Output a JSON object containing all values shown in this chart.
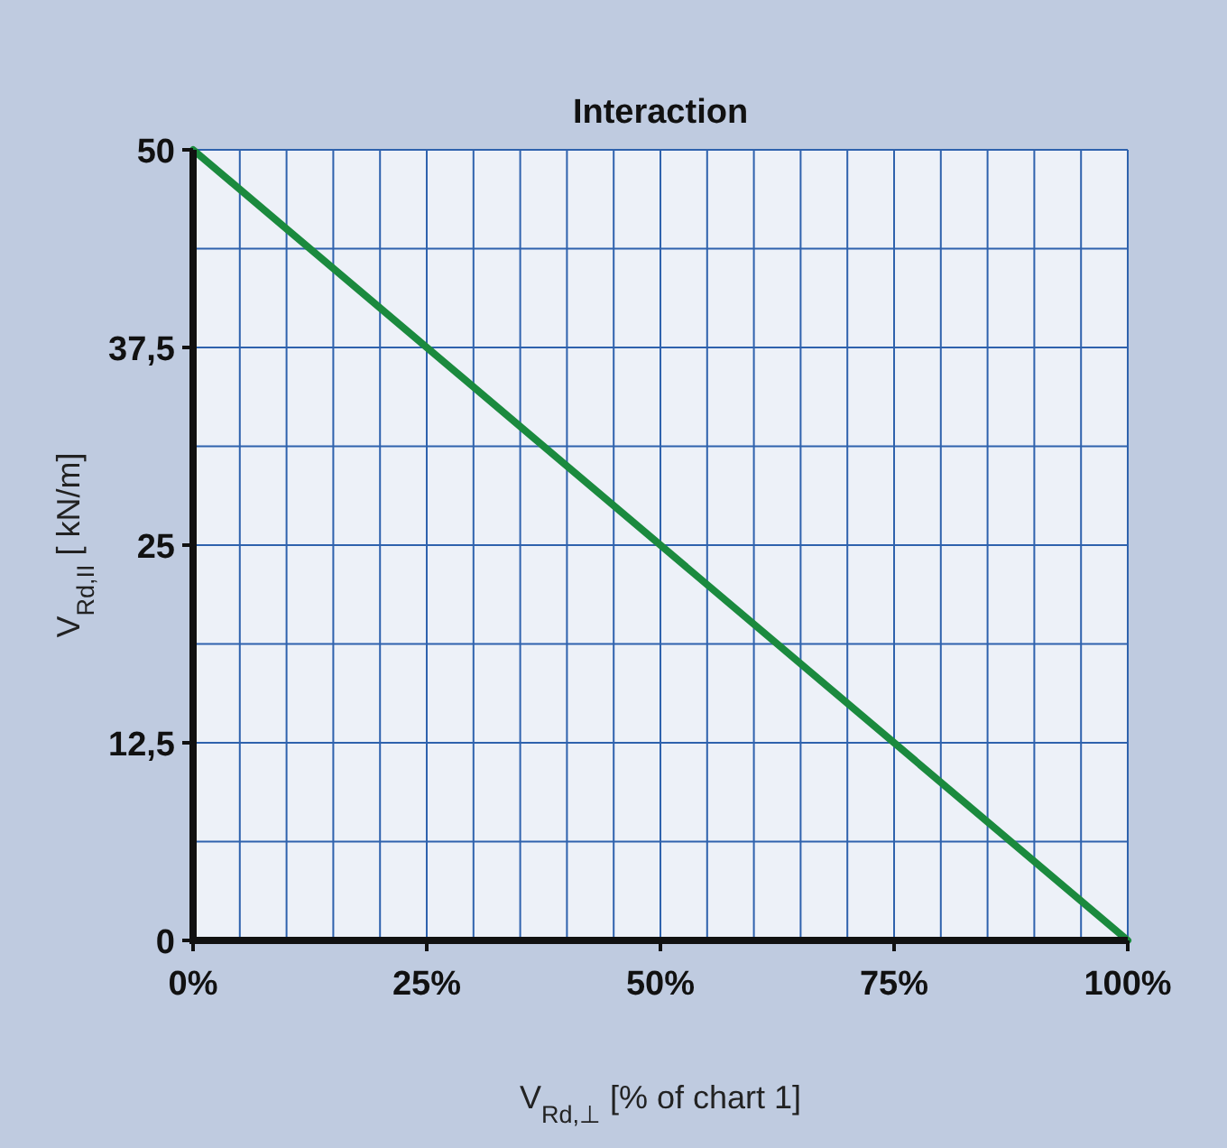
{
  "chart_data": {
    "type": "line",
    "title": "Interaction",
    "xlabel": "V$_{Rd,⊥}$ [% of chart 1]",
    "ylabel": "V$_{Rd,II}$ [ kN/m]",
    "x": [
      0,
      100
    ],
    "series": [
      {
        "color": "#1b8a3e",
        "values": [
          50,
          0
        ]
      }
    ],
    "xlim": [
      0,
      100
    ],
    "ylim": [
      0,
      50
    ],
    "xticks": [
      {
        "value": 0,
        "label": "0%"
      },
      {
        "value": 5,
        "label": null
      },
      {
        "value": 10,
        "label": null
      },
      {
        "value": 15,
        "label": null
      },
      {
        "value": 20,
        "label": null
      },
      {
        "value": 25,
        "label": "25%"
      },
      {
        "value": 30,
        "label": null
      },
      {
        "value": 35,
        "label": null
      },
      {
        "value": 40,
        "label": null
      },
      {
        "value": 45,
        "label": null
      },
      {
        "value": 50,
        "label": "50%"
      },
      {
        "value": 55,
        "label": null
      },
      {
        "value": 60,
        "label": null
      },
      {
        "value": 65,
        "label": null
      },
      {
        "value": 70,
        "label": null
      },
      {
        "value": 75,
        "label": "75%"
      },
      {
        "value": 80,
        "label": null
      },
      {
        "value": 85,
        "label": null
      },
      {
        "value": 90,
        "label": null
      },
      {
        "value": 95,
        "label": null
      },
      {
        "value": 100,
        "label": "100%"
      }
    ],
    "yticks": [
      0,
      {
        "value": 6.25,
        "label": null
      },
      {
        "value": 12.5,
        "label": "12,5"
      },
      {
        "value": 18.75,
        "label": null
      },
      25,
      {
        "value": 31.25,
        "label": null
      },
      {
        "value": 37.5,
        "label": "37,5"
      },
      {
        "value": 43.75,
        "label": null
      },
      50
    ],
    "grid": true,
    "line_style": "solid"
  }
}
